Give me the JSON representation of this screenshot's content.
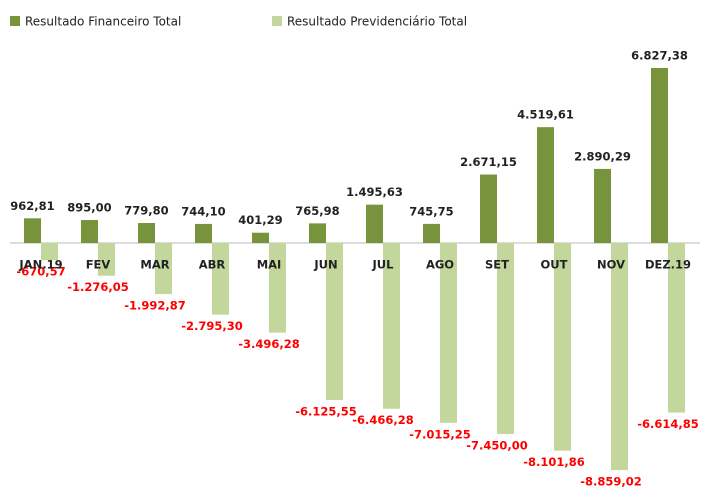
{
  "chart_data": {
    "type": "bar",
    "categories": [
      "JAN.19",
      "FEV",
      "MAR",
      "ABR",
      "MAI",
      "JUN",
      "JUL",
      "AGO",
      "SET",
      "OUT",
      "NOV",
      "DEZ.19"
    ],
    "series": [
      {
        "name": "Resultado Financeiro Total",
        "color": "#77933c",
        "values": [
          962.81,
          895.0,
          779.8,
          744.1,
          401.29,
          765.98,
          1495.63,
          745.75,
          2671.15,
          4519.61,
          2890.29,
          6827.38
        ],
        "value_labels": [
          "962,81",
          "895,00",
          "779,80",
          "744,10",
          "401,29",
          "765,98",
          "1.495,63",
          "745,75",
          "2.671,15",
          "4.519,61",
          "2.890,29",
          "6.827,38"
        ]
      },
      {
        "name": "Resultado Previdenciário Total",
        "color": "#c3d69b",
        "values": [
          -670.57,
          -1276.05,
          -1992.87,
          -2795.3,
          -3496.28,
          -6125.55,
          -6466.28,
          -7015.25,
          -7450.0,
          -8101.86,
          -8859.02,
          -6614.85
        ],
        "value_labels": [
          "-670,57",
          "-1.276,05",
          "-1.992,87",
          "-2.795,30",
          "-3.496,28",
          "-6.125,55",
          "-6.466,28",
          "-7.015,25",
          "-7.450,00",
          "-8.101,86",
          "-8.859,02",
          "-6.614,85"
        ]
      }
    ]
  }
}
